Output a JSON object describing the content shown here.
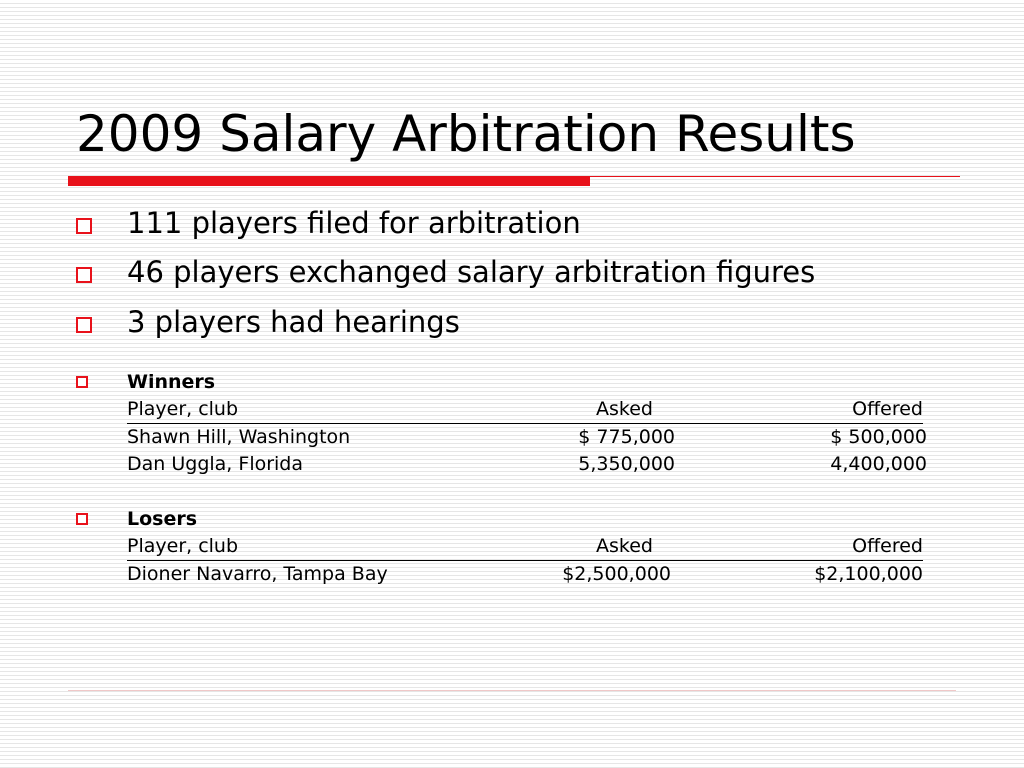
{
  "slide": {
    "title": "2009 Salary Arbitration Results",
    "accent_color": "#e8121b",
    "bullets": [
      {
        "text": "111 players filed for arbitration"
      },
      {
        "text": "46 players exchanged salary arbitration figures"
      },
      {
        "text": "3 players had hearings"
      }
    ],
    "winners": {
      "heading": "Winners",
      "columns": [
        "Player, club",
        "Asked",
        "Offered"
      ],
      "rows": [
        [
          "Shawn Hill, Washington",
          "$ 775,000",
          "$ 500,000"
        ],
        [
          "Dan Uggla, Florida",
          "5,350,000",
          "4,400,000"
        ]
      ]
    },
    "losers": {
      "heading": "Losers",
      "columns": [
        "Player, club",
        "Asked",
        "Offered"
      ],
      "rows": [
        [
          "Dioner Navarro, Tampa Bay",
          "$2,500,000",
          "$2,100,000"
        ]
      ]
    }
  }
}
